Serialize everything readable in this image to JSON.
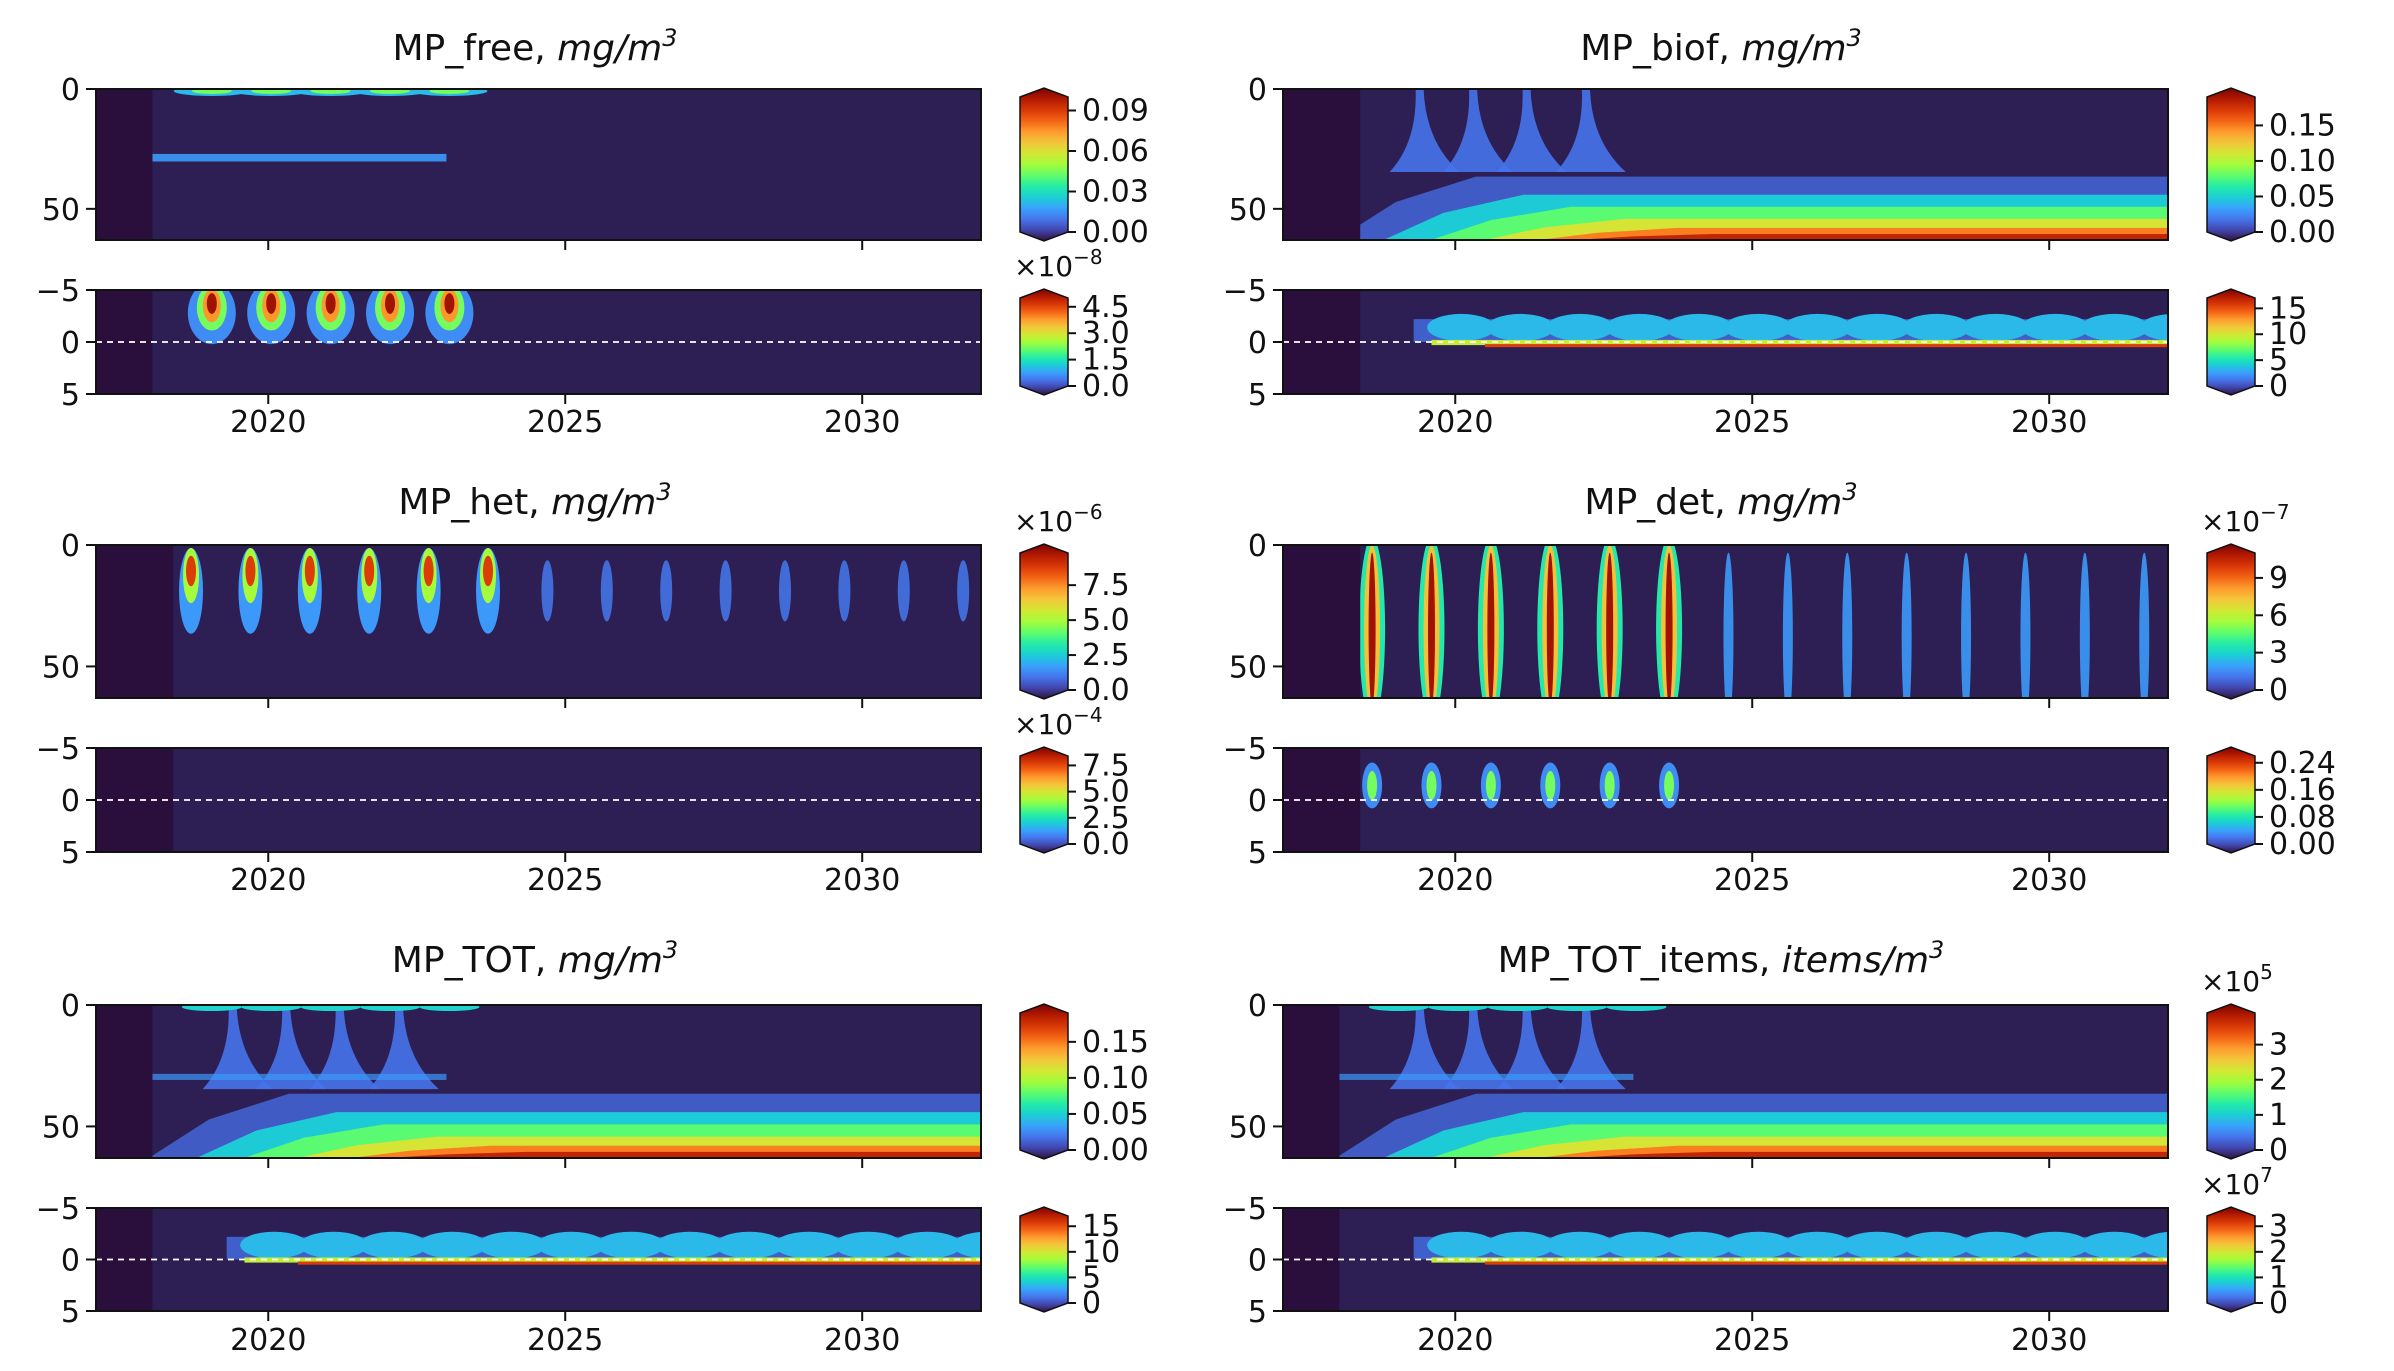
{
  "figure": {
    "background": "#ffffff"
  },
  "colors": {
    "bg": "#2d1f54",
    "spin": "#2a0f3c",
    "colormap": [
      "#30123b",
      "#4145ab",
      "#4675ed",
      "#39a2fc",
      "#1bcfd4",
      "#24eca6",
      "#61fc6c",
      "#a4fc3b",
      "#d1e834",
      "#f3c63a",
      "#fe9b2d",
      "#f36315",
      "#d93806",
      "#b11901",
      "#7a0402"
    ]
  },
  "chart_data": [
    {
      "type": "heatmap",
      "name": "MP_free",
      "title_main": "MP_free, ",
      "title_unit": "mg/m",
      "title_sup": "3",
      "x_ticks": [
        "2020",
        "2025",
        "2030"
      ],
      "x_tick_values": [
        2020,
        2025,
        2030
      ],
      "xlim": [
        2017.1,
        2032.0
      ],
      "spinup_end": 2018.05,
      "top": {
        "yticks": [
          "0",
          "50"
        ],
        "ytick_values": [
          0,
          50
        ],
        "ylim": [
          0,
          63
        ],
        "cb_ticks": [
          "0.00",
          "0.03",
          "0.06",
          "0.09"
        ],
        "cb_values": [
          0,
          0.03,
          0.06,
          0.09
        ],
        "cb_max": 0.1,
        "cb_mult": "",
        "mode": "free_top"
      },
      "bottom": {
        "yticks": [
          "−5",
          "0",
          "5"
        ],
        "ytick_values": [
          -5,
          0,
          5
        ],
        "ylim": [
          -5,
          5
        ],
        "cb_ticks": [
          "0.0",
          "1.5",
          "3.0",
          "4.5"
        ],
        "cb_values": [
          0,
          1.5,
          3.0,
          4.5
        ],
        "cb_max": 5.0,
        "cb_mult": "×10",
        "cb_mult_exp": "−8",
        "mode": "free_bot"
      }
    },
    {
      "type": "heatmap",
      "name": "MP_biof",
      "title_main": "MP_biof, ",
      "title_unit": "mg/m",
      "title_sup": "3",
      "x_ticks": [
        "2020",
        "2025",
        "2030"
      ],
      "x_tick_values": [
        2020,
        2025,
        2030
      ],
      "xlim": [
        2017.1,
        2032.0
      ],
      "spinup_end": 2018.4,
      "top": {
        "yticks": [
          "0",
          "50"
        ],
        "ytick_values": [
          0,
          50
        ],
        "ylim": [
          0,
          63
        ],
        "cb_ticks": [
          "0.00",
          "0.05",
          "0.10",
          "0.15"
        ],
        "cb_values": [
          0,
          0.05,
          0.1,
          0.15
        ],
        "cb_max": 0.19,
        "cb_mult": "",
        "mode": "biof_top"
      },
      "bottom": {
        "yticks": [
          "−5",
          "0",
          "5"
        ],
        "ytick_values": [
          -5,
          0,
          5
        ],
        "ylim": [
          -5,
          5
        ],
        "cb_ticks": [
          "0",
          "5",
          "10",
          "15"
        ],
        "cb_values": [
          0,
          5,
          10,
          15
        ],
        "cb_max": 17,
        "cb_mult": "",
        "mode": "biof_bot"
      }
    },
    {
      "type": "heatmap",
      "name": "MP_het",
      "title_main": "MP_het, ",
      "title_unit": "mg/m",
      "title_sup": "3",
      "x_ticks": [
        "2020",
        "2025",
        "2030"
      ],
      "x_tick_values": [
        2020,
        2025,
        2030
      ],
      "xlim": [
        2017.1,
        2032.0
      ],
      "spinup_end": 2018.4,
      "top": {
        "yticks": [
          "0",
          "50"
        ],
        "ytick_values": [
          0,
          50
        ],
        "ylim": [
          0,
          63
        ],
        "cb_ticks": [
          "0.0",
          "2.5",
          "5.0",
          "7.5"
        ],
        "cb_values": [
          0,
          2.5,
          5.0,
          7.5
        ],
        "cb_max": 9.8,
        "cb_mult": "×10",
        "cb_mult_exp": "−6",
        "mode": "het_top"
      },
      "bottom": {
        "yticks": [
          "−5",
          "0",
          "5"
        ],
        "ytick_values": [
          -5,
          0,
          5
        ],
        "ylim": [
          -5,
          5
        ],
        "cb_ticks": [
          "0.0",
          "2.5",
          "5.0",
          "7.5"
        ],
        "cb_values": [
          0,
          2.5,
          5.0,
          7.5
        ],
        "cb_max": 8.4,
        "cb_mult": "×10",
        "cb_mult_exp": "−4",
        "mode": "het_bot"
      }
    },
    {
      "type": "heatmap",
      "name": "MP_det",
      "title_main": "MP_det, ",
      "title_unit": "mg/m",
      "title_sup": "3",
      "x_ticks": [
        "2020",
        "2025",
        "2030"
      ],
      "x_tick_values": [
        2020,
        2025,
        2030
      ],
      "xlim": [
        2017.1,
        2032.0
      ],
      "spinup_end": 2018.4,
      "top": {
        "yticks": [
          "0",
          "50"
        ],
        "ytick_values": [
          0,
          50
        ],
        "ylim": [
          0,
          63
        ],
        "cb_ticks": [
          "0",
          "3",
          "6",
          "9"
        ],
        "cb_values": [
          0,
          3,
          6,
          9
        ],
        "cb_max": 11,
        "cb_mult": "×10",
        "cb_mult_exp": "−7",
        "mode": "det_top"
      },
      "bottom": {
        "yticks": [
          "−5",
          "0",
          "5"
        ],
        "ytick_values": [
          -5,
          0,
          5
        ],
        "ylim": [
          -5,
          5
        ],
        "cb_ticks": [
          "0.00",
          "0.08",
          "0.16",
          "0.24"
        ],
        "cb_values": [
          0,
          0.08,
          0.16,
          0.24
        ],
        "cb_max": 0.26,
        "cb_mult": "",
        "mode": "det_bot"
      }
    },
    {
      "type": "heatmap",
      "name": "MP_TOT",
      "title_main": "MP_TOT, ",
      "title_unit": "mg/m",
      "title_sup": "3",
      "x_ticks": [
        "2020",
        "2025",
        "2030"
      ],
      "x_tick_values": [
        2020,
        2025,
        2030
      ],
      "xlim": [
        2017.1,
        2032.0
      ],
      "spinup_end": 2018.05,
      "top": {
        "yticks": [
          "0",
          "50"
        ],
        "ytick_values": [
          0,
          50
        ],
        "ylim": [
          0,
          63
        ],
        "cb_ticks": [
          "0.00",
          "0.05",
          "0.10",
          "0.15"
        ],
        "cb_values": [
          0,
          0.05,
          0.1,
          0.15
        ],
        "cb_max": 0.19,
        "cb_mult": "",
        "mode": "tot_top"
      },
      "bottom": {
        "yticks": [
          "−5",
          "0",
          "5"
        ],
        "ytick_values": [
          -5,
          0,
          5
        ],
        "ylim": [
          -5,
          5
        ],
        "cb_ticks": [
          "0",
          "5",
          "10",
          "15"
        ],
        "cb_values": [
          0,
          5,
          10,
          15
        ],
        "cb_max": 17,
        "cb_mult": "",
        "mode": "biof_bot"
      }
    },
    {
      "type": "heatmap",
      "name": "MP_TOT_items",
      "title_main": "MP_TOT_items, ",
      "title_unit": "items/m",
      "title_sup": "3",
      "x_ticks": [
        "2020",
        "2025",
        "2030"
      ],
      "x_tick_values": [
        2020,
        2025,
        2030
      ],
      "xlim": [
        2017.1,
        2032.0
      ],
      "spinup_end": 2018.05,
      "top": {
        "yticks": [
          "0",
          "50"
        ],
        "ytick_values": [
          0,
          50
        ],
        "ylim": [
          0,
          63
        ],
        "cb_ticks": [
          "0",
          "1",
          "2",
          "3"
        ],
        "cb_values": [
          0,
          1,
          2,
          3
        ],
        "cb_max": 3.9,
        "cb_mult": "×10",
        "cb_mult_exp": "5",
        "mode": "tot_top"
      },
      "bottom": {
        "yticks": [
          "−5",
          "0",
          "5"
        ],
        "ytick_values": [
          -5,
          0,
          5
        ],
        "ylim": [
          -5,
          5
        ],
        "cb_ticks": [
          "0",
          "1",
          "2",
          "3"
        ],
        "cb_values": [
          0,
          1,
          2,
          3
        ],
        "cb_max": 3.4,
        "cb_mult": "×10",
        "cb_mult_exp": "7",
        "mode": "biof_bot"
      }
    }
  ]
}
